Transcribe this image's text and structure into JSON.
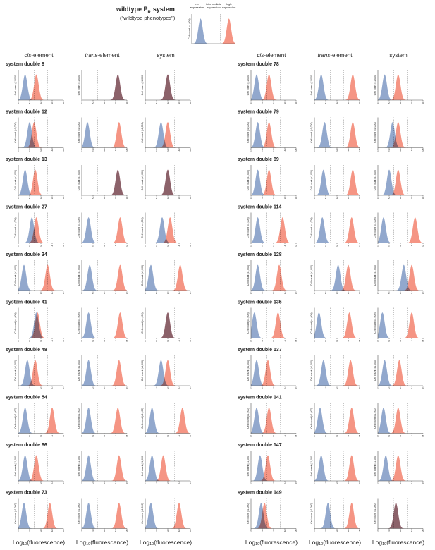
{
  "title": {
    "main": "wildtype P",
    "sub": "R",
    "rest": "system"
  },
  "subtitle": "(\"wildtype phenotypes\")",
  "reference": {
    "labels": [
      [
        "no",
        "expression"
      ],
      [
        "intermediate",
        "expression"
      ],
      [
        "high",
        "expression"
      ]
    ],
    "blue": 1.8,
    "red": 4.4
  },
  "columns": [
    {
      "em": "cis",
      "rest": "-element"
    },
    {
      "em": "trans",
      "rest": "-element"
    },
    {
      "rest": "system"
    }
  ],
  "ylabel": "Cell count (x1,000)",
  "xlabel": {
    "prefix": "Log",
    "sub": "10",
    "suffix": "(fluorescence)"
  },
  "xlim": [
    1,
    5
  ],
  "xticks": [
    1,
    2,
    3,
    4,
    5
  ],
  "thresholds": [
    2.4,
    3.6
  ],
  "colors": {
    "blue": "#7f99c4",
    "red": "#f3836f"
  },
  "rows": [
    {
      "name": "system double 8",
      "panels": [
        {
          "blue": 1.6,
          "red": 2.6
        },
        {
          "blue": 4.2,
          "red": 4.2
        },
        {
          "blue": 3.0,
          "red": 3.0
        }
      ]
    },
    {
      "name": "system double 12",
      "panels": [
        {
          "blue": 2.0,
          "red": 2.4
        },
        {
          "blue": 1.5,
          "red": 4.3
        },
        {
          "blue": 2.4,
          "red": 3.0
        }
      ]
    },
    {
      "name": "system double 13",
      "panels": [
        {
          "blue": 1.6,
          "red": 2.5
        },
        {
          "blue": 4.2,
          "red": 4.2
        },
        {
          "blue": 3.0,
          "red": 3.0
        }
      ]
    },
    {
      "name": "system double 27",
      "panels": [
        {
          "blue": 2.2,
          "red": 2.6
        },
        {
          "blue": 1.6,
          "red": 4.4
        },
        {
          "blue": 2.5,
          "red": 3.2
        }
      ]
    },
    {
      "name": "system double 34",
      "panels": [
        {
          "blue": 1.5,
          "red": 3.6
        },
        {
          "blue": 1.7,
          "red": 4.4
        },
        {
          "blue": 1.5,
          "red": 4.1
        }
      ]
    },
    {
      "name": "system double 41",
      "panels": [
        {
          "blue": 2.6,
          "red": 2.7
        },
        {
          "blue": 1.6,
          "red": 4.4
        },
        {
          "blue": 3.0,
          "red": 3.0
        }
      ]
    },
    {
      "name": "system double 48",
      "panels": [
        {
          "blue": 1.8,
          "red": 2.5
        },
        {
          "blue": 1.6,
          "red": 4.3
        },
        {
          "blue": 2.4,
          "red": 3.0
        }
      ]
    },
    {
      "name": "system double 54",
      "panels": [
        {
          "blue": 1.6,
          "red": 4.0
        },
        {
          "blue": 1.6,
          "red": 4.2
        },
        {
          "blue": 1.6,
          "red": 4.3
        }
      ]
    },
    {
      "name": "system double 66",
      "panels": [
        {
          "blue": 1.6,
          "red": 2.6
        },
        {
          "blue": 1.6,
          "red": 4.3
        },
        {
          "blue": 1.6,
          "red": 2.6
        }
      ]
    },
    {
      "name": "system double 73",
      "panels": [
        {
          "blue": 1.5,
          "red": 3.8
        },
        {
          "blue": 1.6,
          "red": 4.3
        },
        {
          "blue": 1.5,
          "red": 4.0
        }
      ]
    },
    {
      "name": "system double 78",
      "panels": [
        {
          "blue": 1.5,
          "red": 2.6
        },
        {
          "blue": 1.6,
          "red": 4.4
        },
        {
          "blue": 1.6,
          "red": 2.8
        }
      ]
    },
    {
      "name": "system double 79",
      "panels": [
        {
          "blue": 1.6,
          "red": 2.6
        },
        {
          "blue": 1.9,
          "red": 4.4
        },
        {
          "blue": 2.3,
          "red": 2.8
        }
      ]
    },
    {
      "name": "system double 89",
      "panels": [
        {
          "blue": 1.6,
          "red": 2.6
        },
        {
          "blue": 1.8,
          "red": 4.4
        },
        {
          "blue": 2.0,
          "red": 2.8
        }
      ]
    },
    {
      "name": "system double 114",
      "panels": [
        {
          "blue": 1.6,
          "red": 3.8
        },
        {
          "blue": 1.7,
          "red": 4.3
        },
        {
          "blue": 1.5,
          "red": 4.3
        }
      ]
    },
    {
      "name": "system double 128",
      "panels": [
        {
          "blue": 1.6,
          "red": 3.5
        },
        {
          "blue": 3.1,
          "red": 4.0
        },
        {
          "blue": 3.3,
          "red": 4.0
        }
      ]
    },
    {
      "name": "system double 135",
      "panels": [
        {
          "blue": 1.3,
          "red": 3.4
        },
        {
          "blue": 1.4,
          "red": 4.1
        },
        {
          "blue": 1.4,
          "red": 4.0
        }
      ]
    },
    {
      "name": "system double 137",
      "panels": [
        {
          "blue": 1.5,
          "red": 2.5
        },
        {
          "blue": 1.8,
          "red": 4.2
        },
        {
          "blue": 1.6,
          "red": 2.9
        }
      ]
    },
    {
      "name": "system double 141",
      "panels": [
        {
          "blue": 1.5,
          "red": 2.6
        },
        {
          "blue": 1.5,
          "red": 4.3
        },
        {
          "blue": 1.5,
          "red": 2.8
        }
      ]
    },
    {
      "name": "system double 147",
      "panels": [
        {
          "blue": 1.8,
          "red": 2.5
        },
        {
          "blue": 1.6,
          "red": 4.3
        },
        {
          "blue": 1.7,
          "red": 2.8
        }
      ]
    },
    {
      "name": "system double 149",
      "panels": [
        {
          "blue": 1.9,
          "red": 2.2
        },
        {
          "blue": 2.2,
          "red": 4.3
        },
        {
          "blue": 2.6,
          "red": 2.6
        }
      ]
    }
  ]
}
